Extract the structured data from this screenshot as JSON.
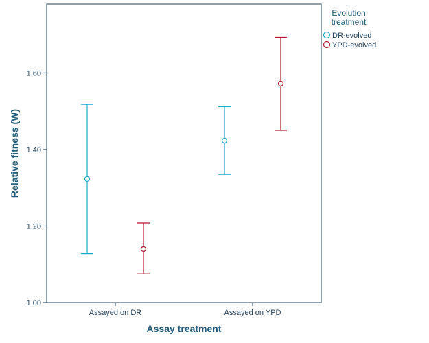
{
  "chart_data": {
    "type": "errorbar",
    "title": "",
    "xlabel": "Assay treatment",
    "ylabel": "Relative fitness (W)",
    "categories": [
      "Assayed on DR",
      "Assayed on YPD"
    ],
    "ylim": [
      1.0,
      1.78
    ],
    "yticks": [
      1.0,
      1.2,
      1.4,
      1.6
    ],
    "ytick_labels": [
      "1.00",
      "1.20",
      "1.40",
      "1.60"
    ],
    "grid": false,
    "legend_position": "top-right",
    "legend_title": "Evolution treatment",
    "series": [
      {
        "name": "DR-evolved",
        "color": "#1aa6c8",
        "means": [
          1.323,
          1.423
        ],
        "lower": [
          1.128,
          1.335
        ],
        "upper": [
          1.518,
          1.512
        ]
      },
      {
        "name": "YPD-evolved",
        "color": "#b5152b",
        "means": [
          1.14,
          1.572
        ],
        "lower": [
          1.075,
          1.45
        ],
        "upper": [
          1.208,
          1.693
        ]
      }
    ]
  }
}
